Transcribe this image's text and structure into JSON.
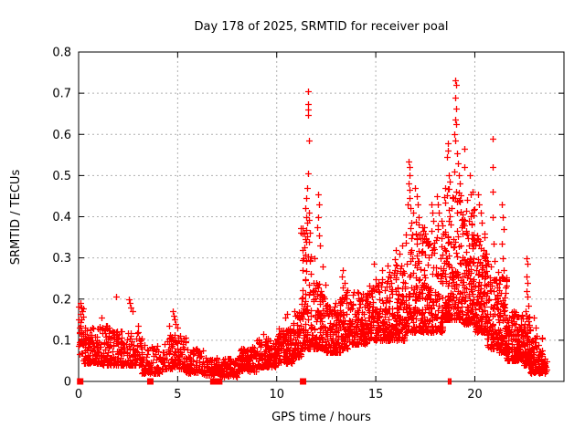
{
  "window": {
    "title": "Day 178 of 2025, SRMTID for receiver poal"
  },
  "chart_data": {
    "type": "scatter",
    "title": "Day 178 of 2025, SRMTID for receiver poal",
    "xlabel": "GPS time / hours",
    "ylabel": "SRMTID / TECUs",
    "xlim": [
      0,
      24.5
    ],
    "ylim": [
      0,
      0.8
    ],
    "xticks": [
      0,
      5,
      10,
      15,
      20
    ],
    "xtick_labels": [
      "0",
      "5",
      "10",
      "15",
      "20"
    ],
    "yticks": [
      0,
      0.1,
      0.2,
      0.3,
      0.4,
      0.5,
      0.6,
      0.7,
      0.8
    ],
    "ytick_labels": [
      "0",
      "0.1",
      "0.2",
      "0.3",
      "0.4",
      "0.5",
      "0.6",
      "0.7",
      "0.8"
    ],
    "grid": "dotted",
    "grid_color": "#b0b0b0",
    "axis_color": "#000000",
    "legend": "none",
    "marker": "+",
    "marker_color": "#ff0000",
    "series_name": "SRMTID",
    "seed": 178,
    "zero_epoch_markers": [
      {
        "x": 0.08,
        "w": 7
      },
      {
        "x": 3.62,
        "w": 7
      },
      {
        "x": 6.8,
        "w": 7
      },
      {
        "x": 7.1,
        "w": 7
      },
      {
        "x": 11.33,
        "w": 7
      },
      {
        "x": 18.68,
        "w": 2
      },
      {
        "x": 18.78,
        "w": 2
      }
    ],
    "density_bands": [
      [
        0.0,
        0.25,
        25,
        0.05,
        0.185,
        1.2
      ],
      [
        0.25,
        1.0,
        95,
        0.045,
        0.135,
        1.8
      ],
      [
        1.0,
        2.0,
        115,
        0.04,
        0.135,
        1.8
      ],
      [
        2.0,
        3.2,
        125,
        0.04,
        0.125,
        1.8
      ],
      [
        3.2,
        4.2,
        75,
        0.02,
        0.09,
        1.6
      ],
      [
        4.2,
        5.4,
        110,
        0.03,
        0.115,
        1.8
      ],
      [
        5.4,
        6.3,
        75,
        0.02,
        0.08,
        1.6
      ],
      [
        6.3,
        7.0,
        60,
        0.015,
        0.06,
        1.4
      ],
      [
        7.0,
        8.0,
        95,
        0.012,
        0.055,
        1.4
      ],
      [
        8.0,
        9.0,
        110,
        0.025,
        0.085,
        1.6
      ],
      [
        9.0,
        10.0,
        120,
        0.035,
        0.105,
        1.6
      ],
      [
        10.0,
        10.8,
        110,
        0.045,
        0.13,
        1.7
      ],
      [
        10.8,
        11.2,
        70,
        0.06,
        0.17,
        1.7
      ],
      [
        11.2,
        11.75,
        95,
        0.08,
        0.4,
        2.2
      ],
      [
        11.75,
        12.5,
        115,
        0.08,
        0.24,
        2.0
      ],
      [
        12.5,
        13.2,
        100,
        0.07,
        0.19,
        1.8
      ],
      [
        13.2,
        13.6,
        70,
        0.08,
        0.23,
        1.8
      ],
      [
        13.6,
        14.6,
        135,
        0.09,
        0.22,
        1.7
      ],
      [
        14.6,
        15.6,
        145,
        0.1,
        0.25,
        1.7
      ],
      [
        15.6,
        16.5,
        145,
        0.1,
        0.3,
        1.8
      ],
      [
        16.5,
        17.4,
        155,
        0.12,
        0.4,
        2.0
      ],
      [
        17.4,
        18.4,
        155,
        0.12,
        0.38,
        1.9
      ],
      [
        18.4,
        19.3,
        165,
        0.15,
        0.47,
        1.8
      ],
      [
        19.3,
        20.0,
        150,
        0.14,
        0.42,
        1.8
      ],
      [
        20.0,
        20.6,
        130,
        0.12,
        0.36,
        1.8
      ],
      [
        20.6,
        21.2,
        100,
        0.08,
        0.3,
        1.9
      ],
      [
        21.2,
        21.6,
        80,
        0.07,
        0.26,
        1.9
      ],
      [
        21.6,
        22.4,
        140,
        0.05,
        0.17,
        1.7
      ],
      [
        22.4,
        22.8,
        70,
        0.04,
        0.16,
        1.6
      ],
      [
        22.8,
        23.4,
        90,
        0.02,
        0.11,
        1.5
      ],
      [
        23.4,
        23.65,
        15,
        0.02,
        0.06,
        1.3
      ]
    ],
    "outlier_points": [
      [
        0.07,
        0.19
      ],
      [
        0.1,
        0.165
      ],
      [
        0.12,
        0.15
      ],
      [
        0.09,
        0.135
      ],
      [
        0.14,
        0.12
      ],
      [
        1.15,
        0.155
      ],
      [
        1.9,
        0.205
      ],
      [
        2.55,
        0.2
      ],
      [
        2.6,
        0.19
      ],
      [
        2.65,
        0.18
      ],
      [
        2.7,
        0.17
      ],
      [
        3.0,
        0.135
      ],
      [
        4.55,
        0.135
      ],
      [
        4.75,
        0.17
      ],
      [
        4.8,
        0.16
      ],
      [
        4.85,
        0.15
      ],
      [
        4.9,
        0.14
      ],
      [
        5.0,
        0.13
      ],
      [
        9.3,
        0.115
      ],
      [
        10.45,
        0.155
      ],
      [
        10.5,
        0.165
      ],
      [
        11.6,
        0.705
      ],
      [
        11.6,
        0.673
      ],
      [
        11.6,
        0.66
      ],
      [
        11.6,
        0.648
      ],
      [
        11.62,
        0.585
      ],
      [
        11.6,
        0.505
      ],
      [
        11.55,
        0.47
      ],
      [
        11.5,
        0.445
      ],
      [
        11.45,
        0.42
      ],
      [
        11.62,
        0.41
      ],
      [
        11.5,
        0.4
      ],
      [
        11.55,
        0.385
      ],
      [
        11.4,
        0.36
      ],
      [
        11.45,
        0.345
      ],
      [
        11.65,
        0.34
      ],
      [
        11.35,
        0.3
      ],
      [
        11.3,
        0.27
      ],
      [
        12.1,
        0.455
      ],
      [
        12.12,
        0.43
      ],
      [
        12.08,
        0.4
      ],
      [
        12.05,
        0.375
      ],
      [
        12.15,
        0.355
      ],
      [
        12.2,
        0.33
      ],
      [
        11.9,
        0.3
      ],
      [
        12.3,
        0.28
      ],
      [
        13.35,
        0.27
      ],
      [
        13.3,
        0.255
      ],
      [
        13.42,
        0.24
      ],
      [
        14.9,
        0.285
      ],
      [
        15.3,
        0.27
      ],
      [
        16.0,
        0.32
      ],
      [
        16.2,
        0.31
      ],
      [
        16.35,
        0.33
      ],
      [
        16.65,
        0.535
      ],
      [
        16.68,
        0.52
      ],
      [
        16.7,
        0.5
      ],
      [
        16.66,
        0.48
      ],
      [
        16.72,
        0.465
      ],
      [
        16.7,
        0.445
      ],
      [
        16.62,
        0.43
      ],
      [
        16.75,
        0.42
      ],
      [
        17.0,
        0.47
      ],
      [
        17.05,
        0.45
      ],
      [
        17.1,
        0.43
      ],
      [
        16.9,
        0.41
      ],
      [
        17.5,
        0.36
      ],
      [
        17.55,
        0.345
      ],
      [
        17.8,
        0.43
      ],
      [
        17.85,
        0.41
      ],
      [
        17.9,
        0.39
      ],
      [
        18.1,
        0.45
      ],
      [
        18.15,
        0.43
      ],
      [
        18.2,
        0.41
      ],
      [
        18.3,
        0.39
      ],
      [
        19.02,
        0.732
      ],
      [
        19.05,
        0.72
      ],
      [
        19.0,
        0.69
      ],
      [
        19.05,
        0.662
      ],
      [
        19.0,
        0.635
      ],
      [
        19.07,
        0.625
      ],
      [
        18.98,
        0.6
      ],
      [
        19.03,
        0.585
      ],
      [
        18.62,
        0.578
      ],
      [
        18.66,
        0.56
      ],
      [
        18.6,
        0.545
      ],
      [
        19.1,
        0.555
      ],
      [
        19.15,
        0.53
      ],
      [
        18.95,
        0.51
      ],
      [
        18.7,
        0.5
      ],
      [
        18.75,
        0.485
      ],
      [
        18.62,
        0.468
      ],
      [
        18.58,
        0.452
      ],
      [
        19.2,
        0.5
      ],
      [
        19.25,
        0.48
      ],
      [
        19.45,
        0.565
      ],
      [
        19.47,
        0.52
      ],
      [
        19.75,
        0.5
      ],
      [
        19.8,
        0.455
      ],
      [
        19.9,
        0.46
      ],
      [
        19.6,
        0.44
      ],
      [
        20.15,
        0.455
      ],
      [
        20.2,
        0.43
      ],
      [
        20.28,
        0.41
      ],
      [
        20.35,
        0.385
      ],
      [
        20.5,
        0.36
      ],
      [
        20.9,
        0.59
      ],
      [
        20.92,
        0.52
      ],
      [
        20.88,
        0.46
      ],
      [
        20.9,
        0.4
      ],
      [
        20.95,
        0.335
      ],
      [
        21.38,
        0.43
      ],
      [
        21.4,
        0.4
      ],
      [
        21.44,
        0.37
      ],
      [
        21.35,
        0.335
      ],
      [
        21.42,
        0.3
      ],
      [
        21.46,
        0.27
      ],
      [
        22.62,
        0.3
      ],
      [
        22.65,
        0.285
      ],
      [
        22.6,
        0.255
      ],
      [
        22.66,
        0.24
      ],
      [
        22.6,
        0.22
      ],
      [
        22.65,
        0.205
      ],
      [
        22.7,
        0.185
      ],
      [
        22.58,
        0.17
      ],
      [
        23.0,
        0.155
      ],
      [
        23.05,
        0.13
      ],
      [
        23.1,
        0.11
      ]
    ]
  }
}
